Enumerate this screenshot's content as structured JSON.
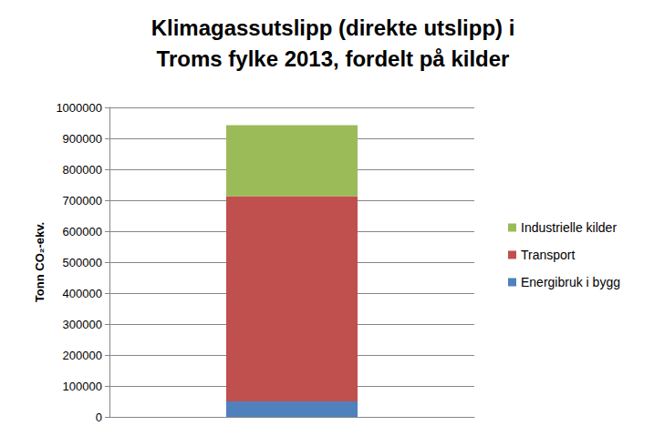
{
  "chart_data": {
    "type": "bar",
    "title": "Klimagassutslipp (direkte utslipp) i\nTroms fylke 2013, fordelt på kilder",
    "y_label": "Tonn CO₂-ekv.",
    "categories": [
      null
    ],
    "series": [
      {
        "name": "Energibruk i bygg",
        "color": "#4f81bd",
        "values": [
          50000
        ]
      },
      {
        "name": "Transport",
        "color": "#c0504d",
        "values": [
          663000
        ]
      },
      {
        "name": "Industrielle kilder",
        "color": "#9bbb59",
        "values": [
          230000
        ]
      }
    ],
    "stacked": true,
    "ylim": [
      0,
      1000000
    ],
    "yticks": [
      0,
      100000,
      200000,
      300000,
      400000,
      500000,
      600000,
      700000,
      800000,
      900000,
      1000000
    ],
    "grid": true,
    "legend": "right"
  }
}
